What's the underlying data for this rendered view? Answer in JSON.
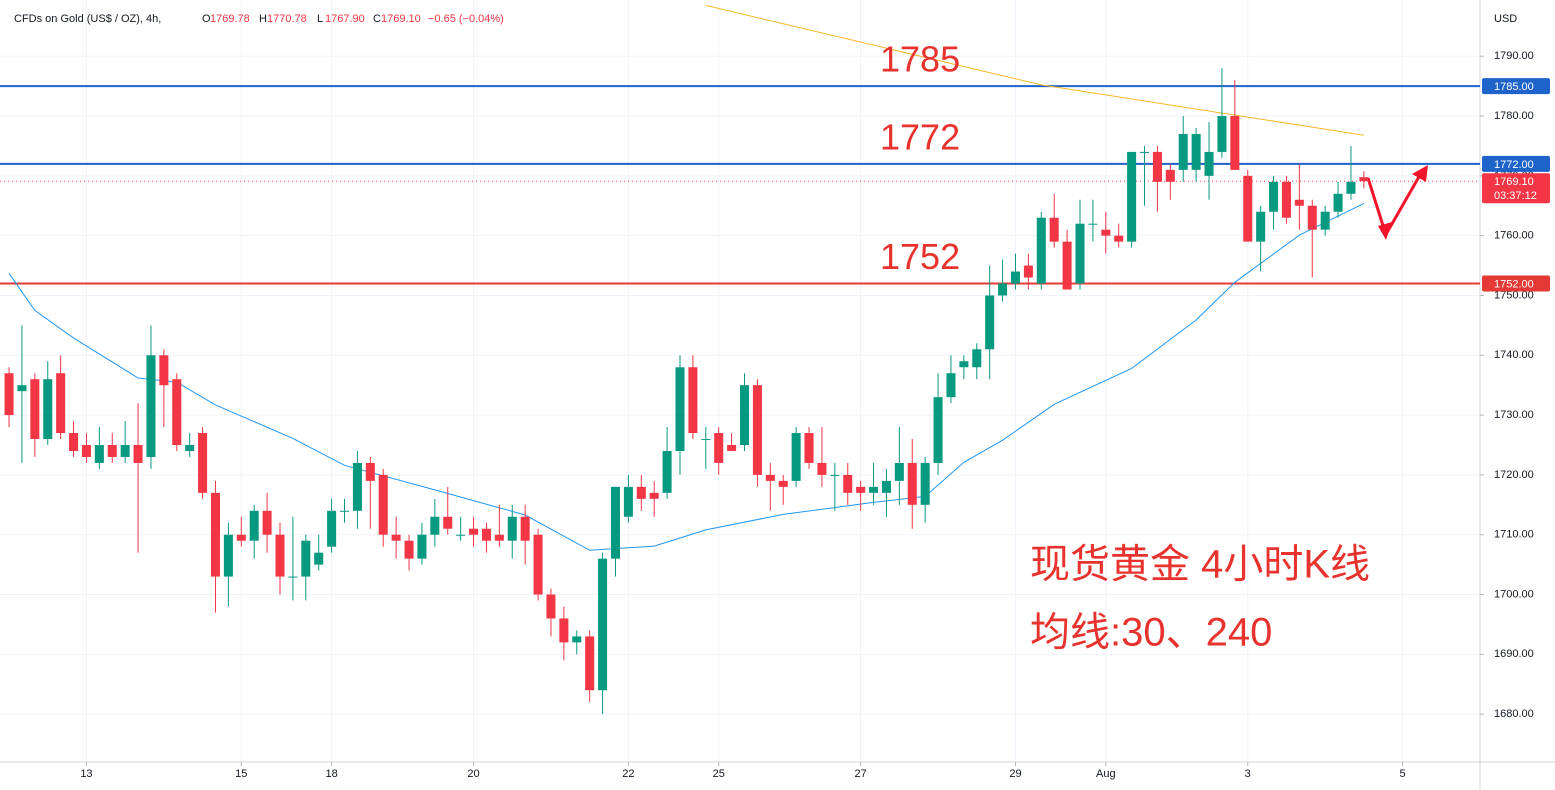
{
  "chart_data": {
    "type": "candlestick",
    "header": {
      "symbol": "CFDs on Gold (US$ / OZ), 4h,",
      "ohlc": [
        {
          "k": "O",
          "v": "1769.78"
        },
        {
          "k": "H",
          "v": "1770.78"
        },
        {
          "k": "L",
          "v": "1767.90"
        },
        {
          "k": "C",
          "v": "1769.10"
        },
        {
          "k": "",
          "v": "−0.65 (−0.04%)"
        }
      ]
    },
    "currency": "USD",
    "up_color": "#089981",
    "down_color": "#f23645",
    "open": [
      1737,
      1734,
      1736,
      1726,
      1737,
      1727,
      1725,
      1722,
      1725,
      1723,
      1725,
      1723,
      1740,
      1736,
      1724,
      1727,
      1717,
      1703,
      1710,
      1709,
      1714,
      1710,
      1703,
      1703,
      1705,
      1708,
      1714,
      1714,
      1722,
      1720,
      1710,
      1709,
      1706,
      1710,
      1713,
      1710,
      1711,
      1711,
      1710,
      1709,
      1713,
      1710,
      1700,
      1696,
      1692,
      1693,
      1684,
      1706,
      1713,
      1718,
      1717,
      1717,
      1724,
      1738,
      1726,
      1727,
      1725,
      1725,
      1735,
      1720,
      1719,
      1719,
      1727,
      1722,
      1720,
      1720,
      1718,
      1717,
      1717,
      1719,
      1722,
      1715,
      1722,
      1733,
      1738,
      1738,
      1741,
      1750,
      1752,
      1755,
      1752,
      1763,
      1759,
      1752,
      1762,
      1761,
      1760,
      1759,
      1774,
      1774,
      1771,
      1771,
      1771,
      1770,
      1774,
      1780,
      1770,
      1759,
      1764,
      1769,
      1766,
      1765,
      1761,
      1764,
      1767,
      1769.78
    ],
    "high": [
      1738,
      1745,
      1737,
      1739,
      1740,
      1729,
      1727,
      1728,
      1727,
      1729,
      1732,
      1745,
      1741,
      1737,
      1727,
      1728,
      1719,
      1712,
      1713,
      1715,
      1717,
      1712,
      1713,
      1710,
      1710,
      1716,
      1716,
      1724,
      1723,
      1721,
      1713,
      1710,
      1712,
      1716,
      1718,
      1713,
      1713,
      1712,
      1715,
      1715,
      1715,
      1711,
      1701,
      1698,
      1694,
      1694,
      1707,
      1718,
      1720,
      1720,
      1719,
      1728,
      1740,
      1740,
      1728,
      1728,
      1727,
      1737,
      1736,
      1722,
      1720,
      1728,
      1728,
      1728,
      1722,
      1722,
      1719,
      1722,
      1721,
      1728,
      1726,
      1723,
      1737,
      1740,
      1740,
      1742,
      1755,
      1756,
      1757,
      1757,
      1764,
      1767,
      1761,
      1766,
      1766,
      1764,
      1762,
      1774,
      1775,
      1775,
      1772,
      1780,
      1778,
      1779,
      1788,
      1786,
      1771,
      1765,
      1770,
      1770,
      1772,
      1766,
      1765,
      1769,
      1775,
      1770.78
    ],
    "low": [
      1728,
      1722,
      1723,
      1725,
      1726,
      1723,
      1722,
      1721,
      1722,
      1722,
      1707,
      1721,
      1728,
      1724,
      1723,
      1716,
      1697,
      1698,
      1708,
      1706,
      1707,
      1700,
      1699,
      1699,
      1704,
      1707,
      1712,
      1711,
      1711,
      1708,
      1706,
      1704,
      1705,
      1708,
      1710,
      1709,
      1708,
      1707,
      1708,
      1706,
      1705,
      1699,
      1693,
      1689,
      1690,
      1682,
      1680,
      1703,
      1712,
      1714,
      1713,
      1716,
      1720,
      1726,
      1721,
      1720,
      1724,
      1724,
      1718,
      1714,
      1715,
      1718,
      1721,
      1718,
      1714,
      1715,
      1714,
      1715,
      1713,
      1715,
      1711,
      1712,
      1720,
      1732,
      1736,
      1736,
      1736,
      1749,
      1751,
      1751,
      1751,
      1758,
      1751,
      1751,
      1759,
      1757,
      1758,
      1758,
      1765,
      1764,
      1766,
      1769,
      1769,
      1766,
      1773,
      1771,
      1759,
      1754,
      1761,
      1762,
      1761,
      1753,
      1760,
      1763,
      1766,
      1767.9
    ],
    "close": [
      1730,
      1735,
      1726,
      1736,
      1727,
      1724,
      1723,
      1725,
      1723,
      1725,
      1722,
      1740,
      1735,
      1725,
      1725,
      1717,
      1703,
      1710,
      1709,
      1714,
      1710,
      1703,
      1703,
      1709,
      1707,
      1714,
      1714,
      1722,
      1719,
      1710,
      1709,
      1706,
      1710,
      1713,
      1711,
      1710,
      1710,
      1709,
      1709,
      1713,
      1709,
      1700,
      1696,
      1692,
      1693,
      1684,
      1706,
      1718,
      1718,
      1716,
      1716,
      1724,
      1738,
      1727,
      1726,
      1722,
      1724,
      1735,
      1720,
      1719,
      1718,
      1727,
      1722,
      1720,
      1720,
      1717,
      1717,
      1718,
      1719,
      1722,
      1715,
      1722,
      1733,
      1737,
      1739,
      1741,
      1750,
      1752,
      1754,
      1753,
      1763,
      1759,
      1751,
      1762,
      1762,
      1760,
      1759,
      1774,
      1774,
      1769,
      1769,
      1777,
      1777,
      1774,
      1780,
      1771,
      1759,
      1764,
      1769,
      1763,
      1765,
      1761,
      1764,
      1767,
      1769,
      1769.1
    ],
    "series": [
      {
        "name": "MA30",
        "color": "#2196f3",
        "x": [
          0,
          2,
          5,
          10,
          13,
          16,
          22,
          26,
          33,
          40,
          45,
          50,
          54,
          60,
          67,
          71,
          74,
          77,
          81,
          87,
          92,
          95,
          100,
          105
        ],
        "values": [
          1753.7,
          1747.5,
          1742.9,
          1736.2,
          1735.5,
          1731.7,
          1726.1,
          1721.6,
          1717.5,
          1713.3,
          1707.4,
          1708.1,
          1710.8,
          1713.4,
          1715.4,
          1716.4,
          1722.1,
          1725.8,
          1731.8,
          1737.8,
          1745.9,
          1752.2,
          1760.1,
          1765.4
        ]
      },
      {
        "name": "MA240",
        "color": "#f5b829",
        "x": [
          54,
          80,
          105
        ],
        "values": [
          1798.5,
          1785.2,
          1776.8
        ]
      }
    ],
    "levels": [
      {
        "value": 1785,
        "label": "1785.00",
        "color": "#1e63c9"
      },
      {
        "value": 1772,
        "label": "1772.00",
        "color": "#1e63c9"
      },
      {
        "value": 1752,
        "label": "1752.00",
        "color": "#e53935"
      }
    ],
    "last": {
      "value": 1769.1,
      "label": "1769.10",
      "countdown": "03:37:12",
      "color": "#f23645"
    },
    "annotations": [
      {
        "text": "1785",
        "value": 1785
      },
      {
        "text": "1772",
        "value": 1772
      },
      {
        "text": "1752",
        "value": 1752
      }
    ],
    "notes": [
      "现货黄金 4小时K线",
      "均线:30、240"
    ],
    "xlim": [
      -0.7,
      114
    ],
    "ylim": [
      1672,
      1799.4
    ],
    "xticks": [
      {
        "value": 6,
        "label": "13"
      },
      {
        "value": 18,
        "label": "15"
      },
      {
        "value": 25,
        "label": "18"
      },
      {
        "value": 36,
        "label": "20"
      },
      {
        "value": 48,
        "label": "22"
      },
      {
        "value": 55,
        "label": "25"
      },
      {
        "value": 66,
        "label": "27"
      },
      {
        "value": 78,
        "label": "29"
      },
      {
        "value": 85,
        "label": "Aug"
      },
      {
        "value": 96,
        "label": "3"
      },
      {
        "value": 108,
        "label": "5"
      }
    ],
    "yticks": [
      {
        "value": 1680,
        "label": "1680.00"
      },
      {
        "value": 1690,
        "label": "1690.00"
      },
      {
        "value": 1700,
        "label": "1700.00"
      },
      {
        "value": 1710,
        "label": "1710.00"
      },
      {
        "value": 1720,
        "label": "1720.00"
      },
      {
        "value": 1730,
        "label": "1730.00"
      },
      {
        "value": 1740,
        "label": "1740.00"
      },
      {
        "value": 1750,
        "label": "1750.00"
      },
      {
        "value": 1760,
        "label": "1760.00"
      },
      {
        "value": 1770,
        "label": "1770.00"
      },
      {
        "value": 1780,
        "label": "1780.00"
      },
      {
        "value": 1790,
        "label": "1790.00"
      }
    ],
    "grid": true
  }
}
